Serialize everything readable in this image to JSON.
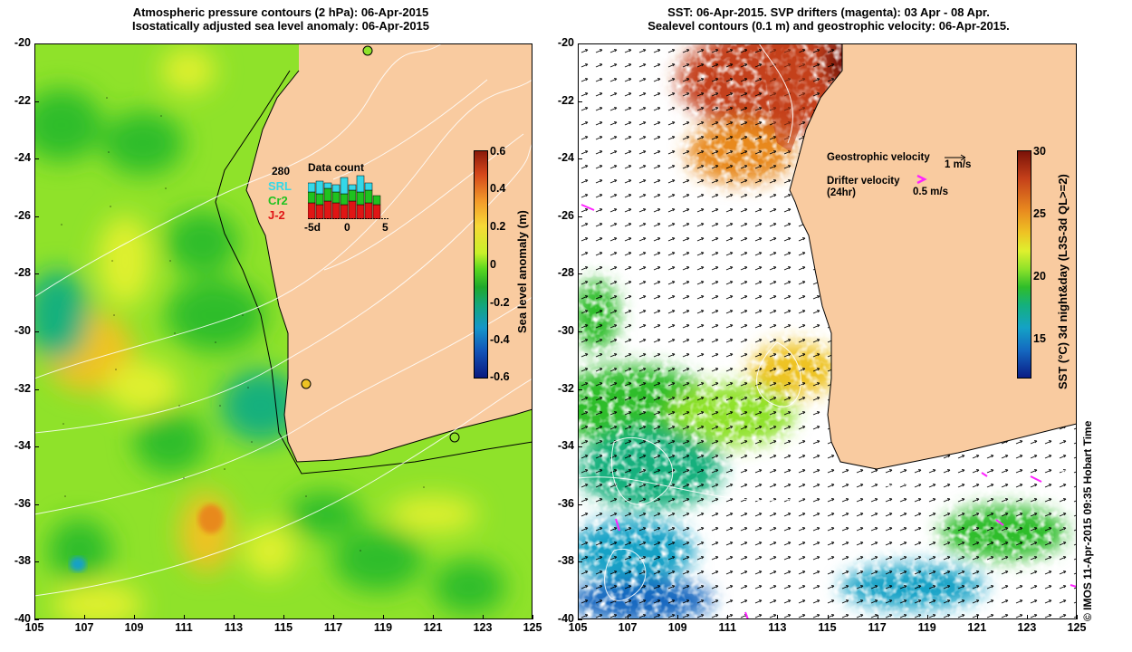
{
  "left": {
    "title_line1": "Atmospheric pressure contours (2 hPa): 06-Apr-2015",
    "title_line2": "Isostatically adjusted sea level anomaly: 06-Apr-2015",
    "colorbar": {
      "label": "Sea level anomaly (m)",
      "ticks": [
        "0.6",
        "0.4",
        "0.2",
        "0",
        "-0.2",
        "-0.4",
        "-0.6"
      ],
      "colors": [
        "#8b1a0a",
        "#d4461a",
        "#f39a2a",
        "#f7d836",
        "#c8f02a",
        "#5ad71f",
        "#1fa82b",
        "#14a67b",
        "#1596c9",
        "#1255b8",
        "#0a1a80"
      ]
    },
    "inset": {
      "title": "Data count",
      "total": "280",
      "series": [
        {
          "name": "SRL",
          "color": "#34d8e8"
        },
        {
          "name": "Cr2",
          "color": "#1fc21f"
        },
        {
          "name": "J-2",
          "color": "#e01515"
        }
      ],
      "x_ticks": [
        "-5d",
        "0",
        "5"
      ]
    }
  },
  "right": {
    "title_line1": "SST: 06-Apr-2015. SVP drifters (magenta): 03 Apr - 08 Apr.",
    "title_line2": "Sealevel contours (0.1 m) and geostrophic velocity: 06-Apr-2015.",
    "colorbar": {
      "label": "SST (°C) 3d night&day (L3S-3d QL>=2)",
      "ticks": [
        "30",
        "25",
        "20",
        "15"
      ],
      "colors": [
        "#7a1208",
        "#c4401a",
        "#e8891f",
        "#eec324",
        "#dff02e",
        "#8fe22a",
        "#2fbd2a",
        "#14b07d",
        "#14a2c6",
        "#1468c0",
        "#0a1c85"
      ]
    },
    "legend": {
      "geo_label": "Geostrophic velocity",
      "geo_scale": "1 m/s",
      "drifter_label": "Drifter velocity",
      "drifter_sub": "(24hr)",
      "drifter_scale": "0.5 m/s"
    }
  },
  "axes": {
    "y_ticks": [
      "-20",
      "-22",
      "-24",
      "-26",
      "-28",
      "-30",
      "-32",
      "-34",
      "-36",
      "-38",
      "-40"
    ],
    "x_ticks": [
      "105",
      "107",
      "109",
      "111",
      "113",
      "115",
      "117",
      "119",
      "121",
      "123",
      "125"
    ]
  },
  "credit": "© IMOS 11-Apr-2015 09:35 Hobart Time",
  "colors": {
    "land": "#f9cba0",
    "coast": "#000000",
    "drifter": "#ff22ff"
  }
}
